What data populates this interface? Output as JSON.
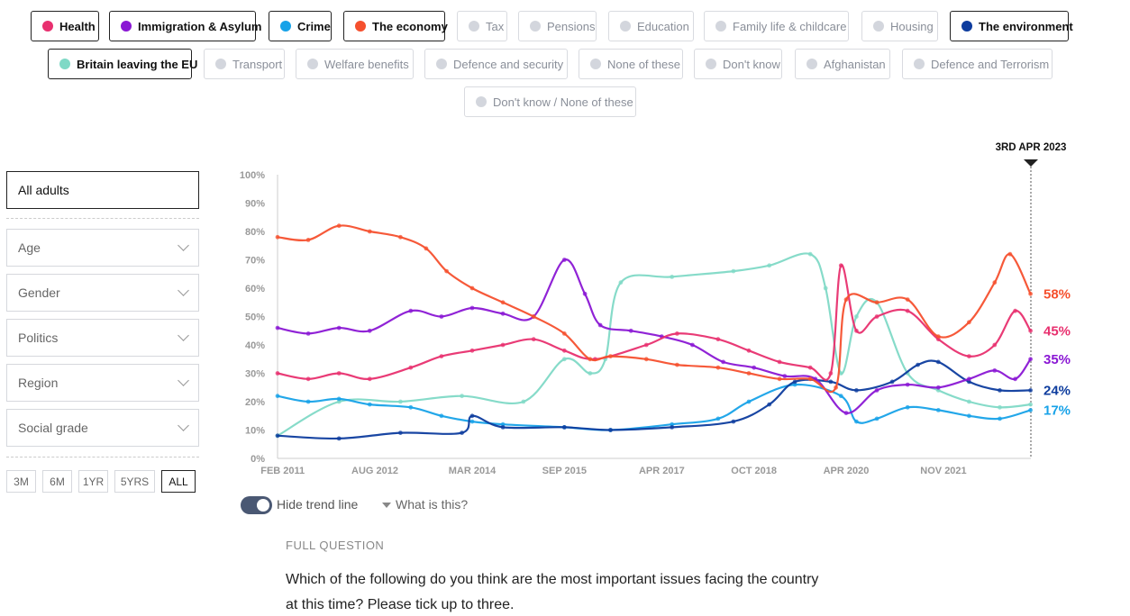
{
  "issues_row1": [
    {
      "label": "Health",
      "active": true,
      "color": "#e8306f"
    },
    {
      "label": "Immigration & Asylum",
      "active": true,
      "color": "#8a17d4"
    },
    {
      "label": "Crime",
      "active": true,
      "color": "#17a2e8"
    },
    {
      "label": "The economy",
      "active": true,
      "color": "#f5502e"
    },
    {
      "label": "Tax",
      "active": false
    },
    {
      "label": "Pensions",
      "active": false
    },
    {
      "label": "Education",
      "active": false
    },
    {
      "label": "Family life & childcare",
      "active": false
    },
    {
      "label": "Housing",
      "active": false
    },
    {
      "label": "The environment",
      "active": true,
      "color": "#0d3c9e"
    }
  ],
  "issues_row2": [
    {
      "label": "Britain leaving the EU",
      "active": true,
      "color": "#7fd9c6"
    },
    {
      "label": "Transport",
      "active": false
    },
    {
      "label": "Welfare benefits",
      "active": false
    },
    {
      "label": "Defence and security",
      "active": false
    },
    {
      "label": "None of these",
      "active": false
    },
    {
      "label": "Don't know",
      "active": false
    },
    {
      "label": "Afghanistan",
      "active": false
    },
    {
      "label": "Defence and Terrorism",
      "active": false
    }
  ],
  "issues_row3": [
    {
      "label": "Don't know / None of these",
      "active": false
    }
  ],
  "filters": {
    "audience": "All adults",
    "dropdowns": [
      "Age",
      "Gender",
      "Politics",
      "Region",
      "Social grade"
    ],
    "ranges": [
      "3M",
      "6M",
      "1YR",
      "5YRS",
      "ALL"
    ],
    "selected_range": "ALL"
  },
  "chart_data": {
    "type": "line",
    "y_ticks": [
      "100%",
      "90%",
      "80%",
      "70%",
      "60%",
      "50%",
      "40%",
      "30%",
      "20%",
      "10%",
      "0%"
    ],
    "ylim": [
      0,
      100
    ],
    "x_ticks": [
      "FEB 2011",
      "AUG 2012",
      "MAR 2014",
      "SEP 2015",
      "APR 2017",
      "OCT 2018",
      "APR 2020",
      "NOV 2021"
    ],
    "xlim": [
      "2011-01-01",
      "2023-04-03"
    ],
    "current_date_label": "3RD APR 2023",
    "series": [
      {
        "name": "The economy",
        "color": "#f5502e",
        "end_label": "58%",
        "end_value": 58,
        "points": [
          [
            "2011-01",
            78
          ],
          [
            "2011-07",
            77
          ],
          [
            "2012-01",
            82
          ],
          [
            "2012-07",
            80
          ],
          [
            "2013-01",
            78
          ],
          [
            "2013-06",
            74
          ],
          [
            "2013-10",
            66
          ],
          [
            "2014-03",
            60
          ],
          [
            "2014-09",
            55
          ],
          [
            "2015-03",
            50
          ],
          [
            "2015-09",
            44
          ],
          [
            "2016-02",
            35
          ],
          [
            "2016-06",
            36
          ],
          [
            "2017-01",
            35
          ],
          [
            "2017-07",
            33
          ],
          [
            "2018-03",
            32
          ],
          [
            "2018-09",
            30
          ],
          [
            "2019-03",
            28
          ],
          [
            "2019-09",
            28
          ],
          [
            "2020-02",
            25
          ],
          [
            "2020-04",
            56
          ],
          [
            "2020-10",
            55
          ],
          [
            "2021-04",
            56
          ],
          [
            "2021-10",
            43
          ],
          [
            "2022-04",
            48
          ],
          [
            "2022-09",
            62
          ],
          [
            "2022-12",
            72
          ],
          [
            "2023-04",
            58
          ]
        ]
      },
      {
        "name": "Health",
        "color": "#e8306f",
        "end_label": "45%",
        "end_value": 45,
        "points": [
          [
            "2011-01",
            30
          ],
          [
            "2011-07",
            28
          ],
          [
            "2012-01",
            30
          ],
          [
            "2012-07",
            28
          ],
          [
            "2013-03",
            32
          ],
          [
            "2013-09",
            36
          ],
          [
            "2014-03",
            38
          ],
          [
            "2014-09",
            40
          ],
          [
            "2015-03",
            42
          ],
          [
            "2015-09",
            38
          ],
          [
            "2016-03",
            35
          ],
          [
            "2017-01",
            40
          ],
          [
            "2017-07",
            44
          ],
          [
            "2018-03",
            42
          ],
          [
            "2018-09",
            38
          ],
          [
            "2019-03",
            34
          ],
          [
            "2019-09",
            32
          ],
          [
            "2020-01",
            30
          ],
          [
            "2020-03",
            68
          ],
          [
            "2020-06",
            45
          ],
          [
            "2020-10",
            50
          ],
          [
            "2021-04",
            52
          ],
          [
            "2021-10",
            42
          ],
          [
            "2022-04",
            36
          ],
          [
            "2022-09",
            40
          ],
          [
            "2023-01",
            52
          ],
          [
            "2023-04",
            45
          ]
        ]
      },
      {
        "name": "Immigration & Asylum",
        "color": "#8a17d4",
        "end_label": "35%",
        "end_value": 35,
        "points": [
          [
            "2011-01",
            46
          ],
          [
            "2011-07",
            44
          ],
          [
            "2012-01",
            46
          ],
          [
            "2012-07",
            45
          ],
          [
            "2013-03",
            52
          ],
          [
            "2013-09",
            50
          ],
          [
            "2014-03",
            53
          ],
          [
            "2014-09",
            51
          ],
          [
            "2015-03",
            50
          ],
          [
            "2015-09",
            70
          ],
          [
            "2016-01",
            58
          ],
          [
            "2016-04",
            47
          ],
          [
            "2016-10",
            45
          ],
          [
            "2017-04",
            43
          ],
          [
            "2017-10",
            40
          ],
          [
            "2018-04",
            34
          ],
          [
            "2018-10",
            32
          ],
          [
            "2019-04",
            29
          ],
          [
            "2019-10",
            28
          ],
          [
            "2020-04",
            16
          ],
          [
            "2020-10",
            24
          ],
          [
            "2021-04",
            26
          ],
          [
            "2021-10",
            25
          ],
          [
            "2022-04",
            28
          ],
          [
            "2022-09",
            31
          ],
          [
            "2023-01",
            28
          ],
          [
            "2023-04",
            35
          ]
        ]
      },
      {
        "name": "The environment",
        "color": "#0d3c9e",
        "end_label": "24%",
        "end_value": 24,
        "points": [
          [
            "2011-01",
            8
          ],
          [
            "2012-01",
            7
          ],
          [
            "2013-01",
            9
          ],
          [
            "2014-01",
            9
          ],
          [
            "2014-03",
            15
          ],
          [
            "2014-09",
            11
          ],
          [
            "2015-09",
            11
          ],
          [
            "2016-06",
            10
          ],
          [
            "2017-06",
            11
          ],
          [
            "2018-06",
            13
          ],
          [
            "2019-01",
            19
          ],
          [
            "2019-06",
            27
          ],
          [
            "2020-01",
            27
          ],
          [
            "2020-06",
            24
          ],
          [
            "2021-01",
            27
          ],
          [
            "2021-06",
            33
          ],
          [
            "2021-10",
            34
          ],
          [
            "2022-04",
            27
          ],
          [
            "2022-10",
            24
          ],
          [
            "2023-04",
            24
          ]
        ]
      },
      {
        "name": "Crime",
        "color": "#17a2e8",
        "end_label": "17%",
        "end_value": 17,
        "points": [
          [
            "2011-01",
            22
          ],
          [
            "2011-07",
            20
          ],
          [
            "2012-01",
            21
          ],
          [
            "2012-07",
            19
          ],
          [
            "2013-03",
            18
          ],
          [
            "2013-09",
            15
          ],
          [
            "2014-03",
            13
          ],
          [
            "2014-09",
            12
          ],
          [
            "2015-09",
            11
          ],
          [
            "2016-06",
            10
          ],
          [
            "2017-06",
            12
          ],
          [
            "2018-03",
            14
          ],
          [
            "2018-09",
            20
          ],
          [
            "2019-06",
            26
          ],
          [
            "2020-03",
            22
          ],
          [
            "2020-06",
            13
          ],
          [
            "2020-10",
            14
          ],
          [
            "2021-04",
            18
          ],
          [
            "2021-10",
            17
          ],
          [
            "2022-04",
            15
          ],
          [
            "2022-10",
            14
          ],
          [
            "2023-04",
            17
          ]
        ]
      },
      {
        "name": "Britain leaving the EU",
        "color": "#7fd9c6",
        "end_label": "",
        "end_value": 19,
        "points": [
          [
            "2011-01",
            8
          ],
          [
            "2012-01",
            20
          ],
          [
            "2013-01",
            20
          ],
          [
            "2014-01",
            22
          ],
          [
            "2015-01",
            20
          ],
          [
            "2015-09",
            35
          ],
          [
            "2016-02",
            30
          ],
          [
            "2016-05",
            35
          ],
          [
            "2016-08",
            62
          ],
          [
            "2017-06",
            64
          ],
          [
            "2018-06",
            66
          ],
          [
            "2019-01",
            68
          ],
          [
            "2019-09",
            72
          ],
          [
            "2019-12",
            60
          ],
          [
            "2020-03",
            30
          ],
          [
            "2020-06",
            50
          ],
          [
            "2020-10",
            55
          ],
          [
            "2021-04",
            30
          ],
          [
            "2021-10",
            24
          ],
          [
            "2022-04",
            20
          ],
          [
            "2022-10",
            18
          ],
          [
            "2023-04",
            19
          ]
        ]
      }
    ]
  },
  "trend": {
    "toggle_label": "Hide trend line",
    "help_label": "What is this?"
  },
  "question": {
    "label": "FULL QUESTION",
    "text": "Which of the following do you think are the most important issues facing the country at this time? Please tick up to three."
  }
}
